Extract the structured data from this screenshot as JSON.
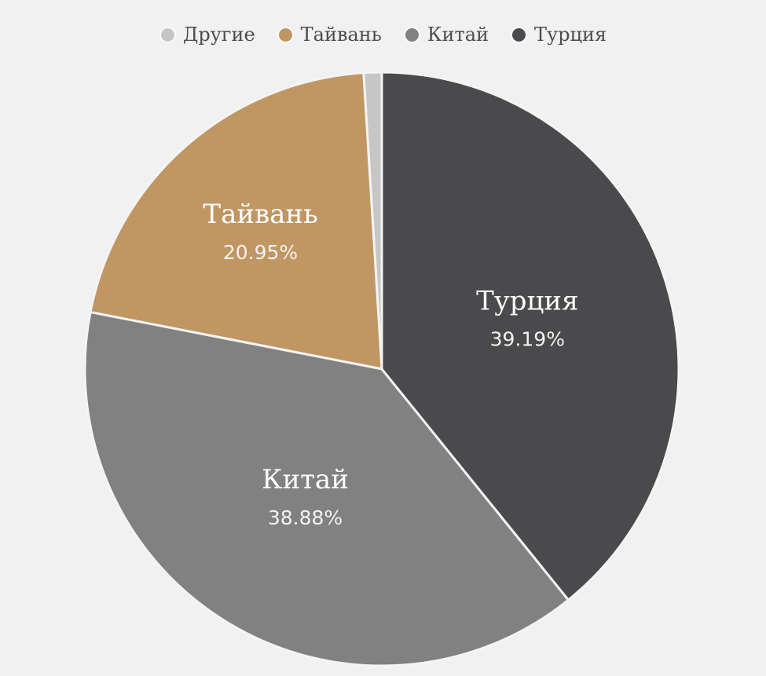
{
  "background_color": "#f1f1f1",
  "legend_text_color": "#4c4c4c",
  "chart_data": {
    "type": "pie",
    "title": "",
    "label_position": "inside",
    "label_color": "#ffffff",
    "separator_color": "#f4f4f4",
    "legend_position": "top",
    "start_angle": "top",
    "direction": "counterclockwise",
    "series": [
      {
        "name": "Другие",
        "value": 0.98,
        "percent_label": "",
        "color": "#c6c6c6",
        "label_visible": false
      },
      {
        "name": "Тайвань",
        "value": 20.95,
        "percent_label": "20.95%",
        "color": "#c09663",
        "label_visible": true
      },
      {
        "name": "Китай",
        "value": 38.88,
        "percent_label": "38.88%",
        "color": "#818181",
        "label_visible": true
      },
      {
        "name": "Турция",
        "value": 39.19,
        "percent_label": "39.19%",
        "color": "#4a4a4c",
        "label_visible": true
      }
    ]
  }
}
